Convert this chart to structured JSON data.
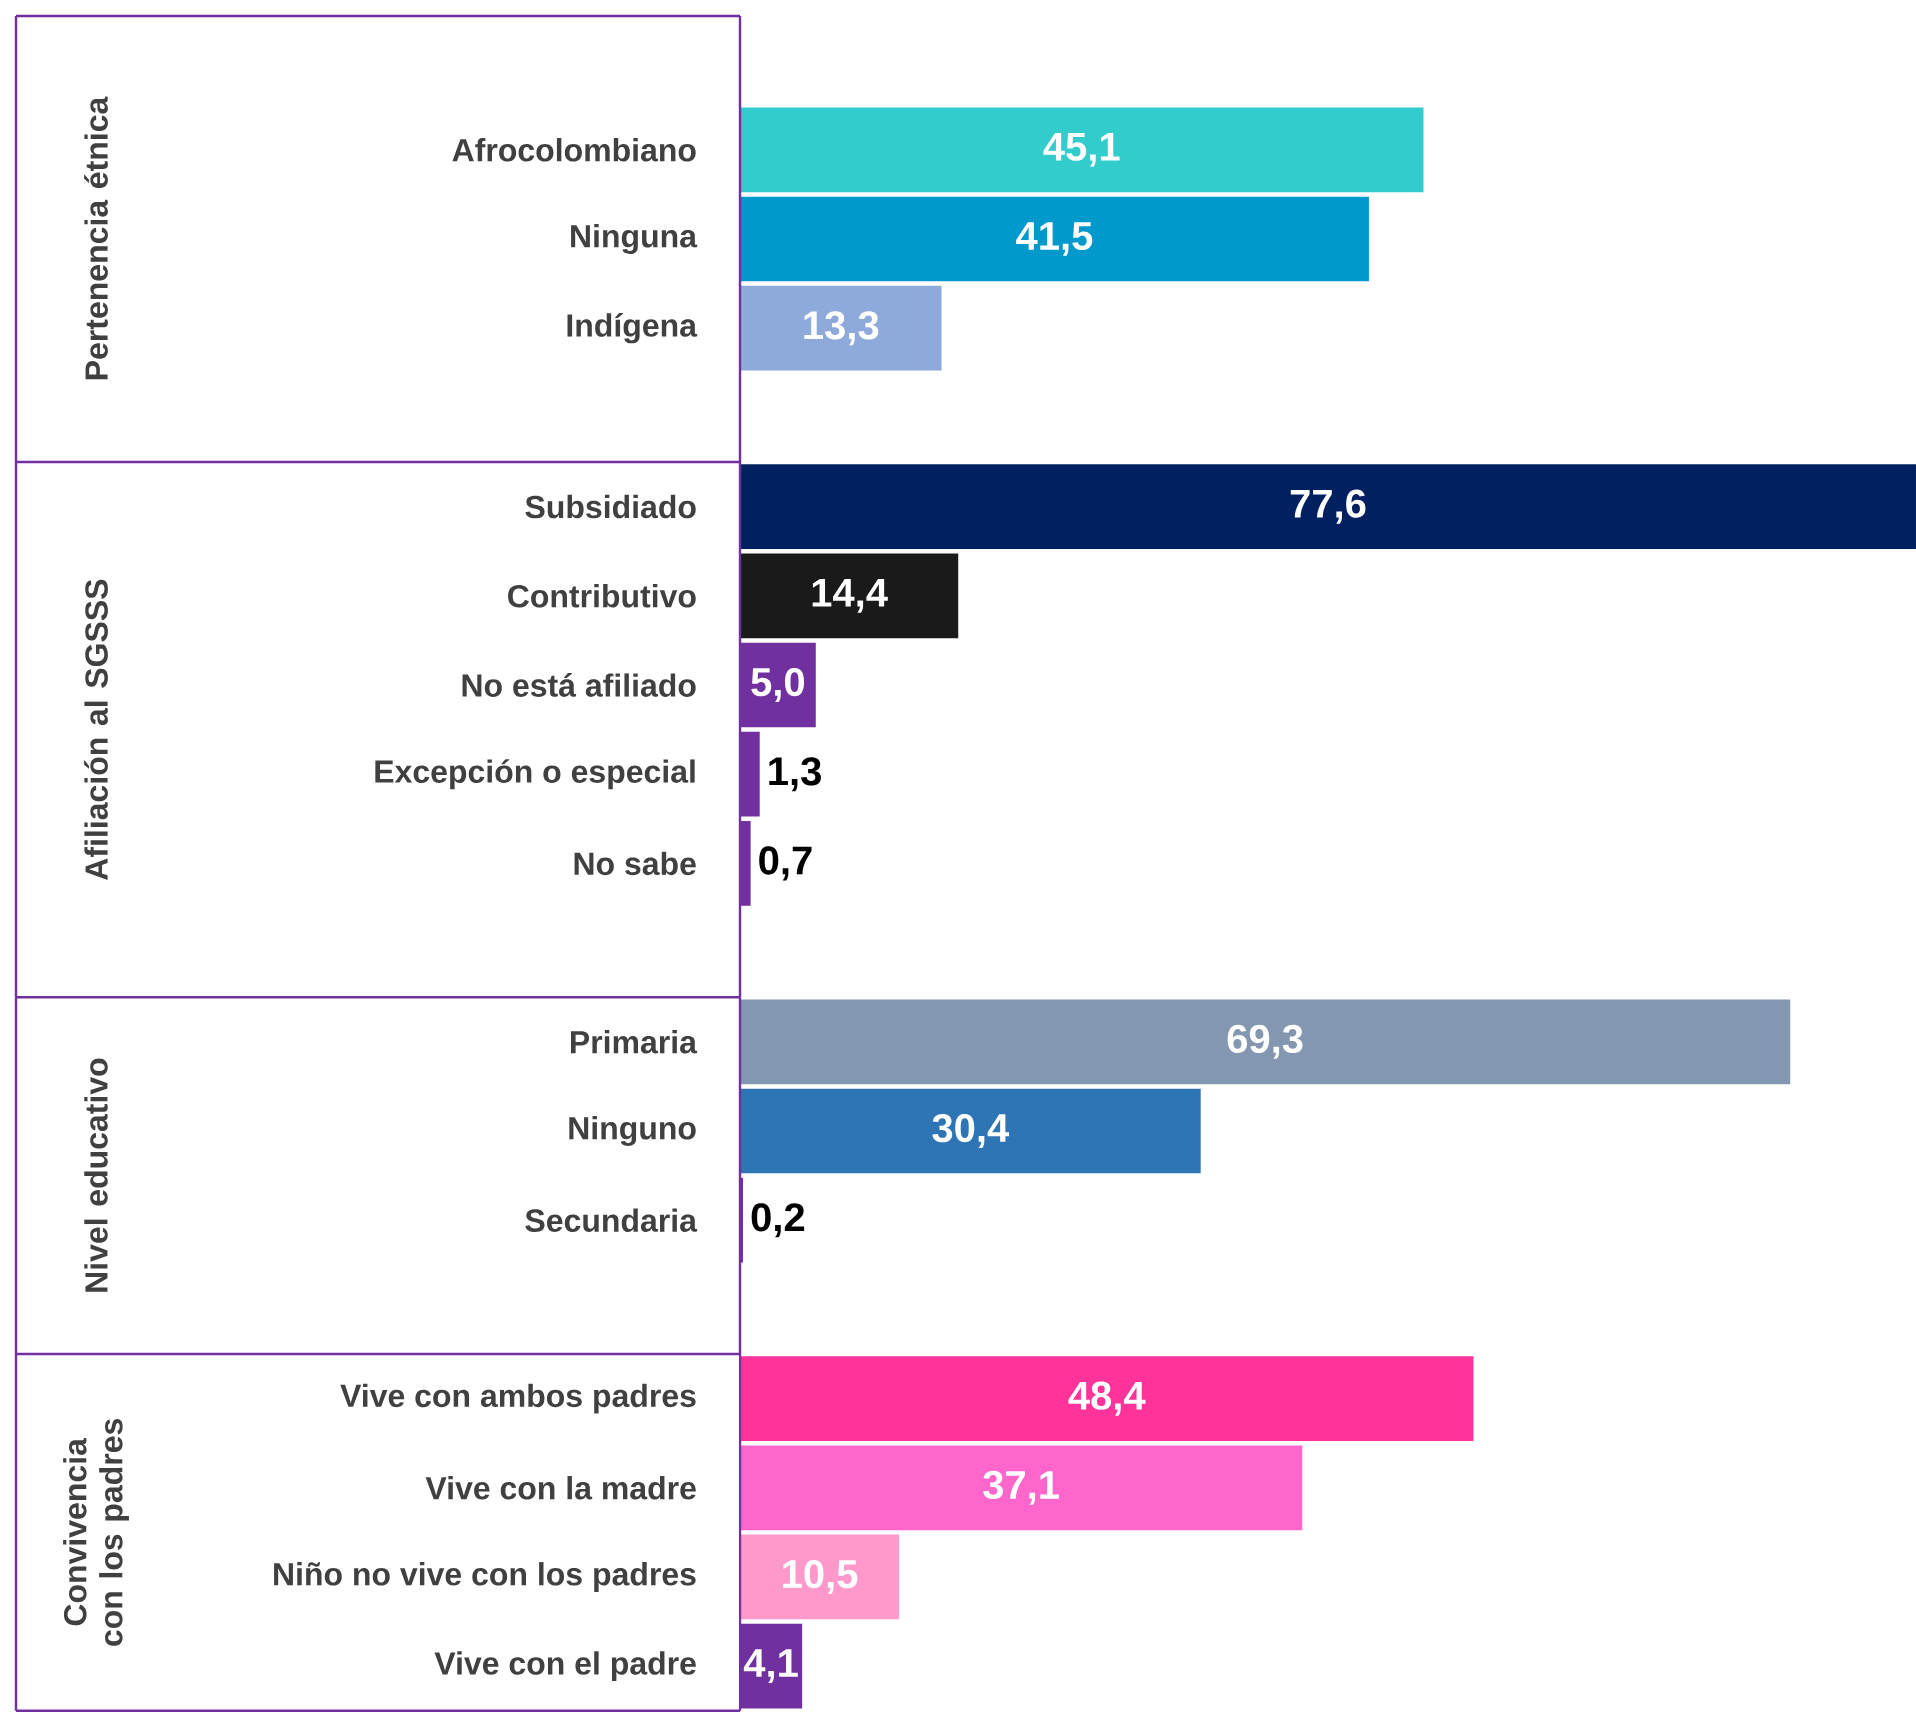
{
  "chart_data": [
    {
      "type": "bar",
      "orientation": "horizontal",
      "ylabel": "Pertenencia étnica",
      "categories": [
        "Afrocolombiano",
        "Ninguna",
        "Indígena"
      ],
      "values": [
        45.1,
        41.5,
        13.3
      ],
      "colors": [
        "#33cccc",
        "#0099cc",
        "#8eaadb"
      ],
      "value_labels": [
        "45,1",
        "41,5",
        "13,3"
      ]
    },
    {
      "type": "bar",
      "orientation": "horizontal",
      "ylabel": "Afiliación al SGSSS",
      "categories": [
        "Subsidiado",
        "Contributivo",
        "No está afiliado",
        "Excepción o especial",
        "No sabe"
      ],
      "values": [
        77.6,
        14.4,
        5.0,
        1.3,
        0.7
      ],
      "colors": [
        "#002060",
        "#1a1a1a",
        "#7030a0",
        "#7030a0",
        "#7030a0"
      ],
      "value_labels": [
        "77,6",
        "14,4",
        "5,0",
        "1,3",
        "0,7"
      ]
    },
    {
      "type": "bar",
      "orientation": "horizontal",
      "ylabel": "Nivel educativo",
      "categories": [
        "Primaria",
        "Ninguno",
        "Secundaria"
      ],
      "values": [
        69.3,
        30.4,
        0.2
      ],
      "colors": [
        "#8497b0",
        "#2e75b6",
        "#7030a0"
      ],
      "value_labels": [
        "69,3",
        "30,4",
        "0,2"
      ]
    },
    {
      "type": "bar",
      "orientation": "horizontal",
      "ylabel": "Convivencia con los padres",
      "categories": [
        "Vive con ambos padres",
        "Vive con la madre",
        "Niño no vive con los padres",
        "Vive con el padre"
      ],
      "values": [
        48.4,
        37.1,
        10.5,
        4.1
      ],
      "colors": [
        "#ff3399",
        "#ff66cc",
        "#ff99cc",
        "#7030a0"
      ],
      "value_labels": [
        "48,4",
        "37,1",
        "10,5",
        "4,1"
      ]
    }
  ]
}
